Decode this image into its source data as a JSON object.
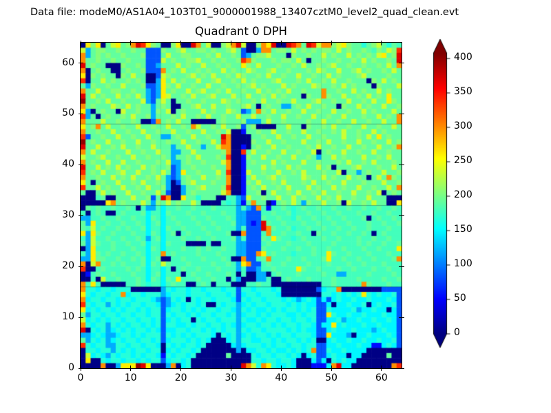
{
  "header": {
    "data_file_label": "Data file: modeM0/AS1A04_103T01_9000001988_13407cztM0_level2_quad_clean.evt"
  },
  "chart_data": {
    "type": "heatmap",
    "title": "Quadrant 0 DPH",
    "xlabel": "",
    "ylabel": "",
    "x_range": [
      0,
      64
    ],
    "y_range": [
      0,
      64
    ],
    "grid_size": 64,
    "x_ticks": [
      0,
      10,
      20,
      30,
      40,
      50,
      60
    ],
    "y_ticks": [
      0,
      10,
      20,
      30,
      40,
      50,
      60
    ],
    "colormap": "jet",
    "colorbar": {
      "ticks": [
        0,
        50,
        100,
        150,
        200,
        250,
        300,
        350,
        400
      ],
      "vmin": 0,
      "vmax": 408,
      "extend": "both",
      "over_color": "#800000",
      "under_color": "#000080"
    },
    "colors": {
      "background": "#ffffff",
      "text": "#000000",
      "frame": "#000000"
    },
    "section_boundaries": [
      16,
      32,
      48
    ],
    "value_encoding": {
      "0": 2,
      "1": 55,
      "2": 85,
      "3": 120,
      "4": 150,
      "5": 168,
      "6": 180,
      "7": 192,
      "8": 207,
      "9": 235,
      "a": 262,
      "b": 300,
      "c": 340,
      "d": 370,
      "e": 400
    },
    "rows_top_to_bottom": [
      "0a8a079a78bdca87008a00db790089bd9008bad00dcb7dc9bb89a87757897576",
      "937887787787722287789778878778972003bb7887978787887978778768798c",
      "b378787787778222797788777879778723788977708778779787797878 79a78d",
      "b77877877877722297877889778787 78cb87778788797077877877879787787d",
      "d787700087787223777978779778787 7a879777877879778789778778778797b",
      "b078770078778222b787977878779787798778977877787987797789 78778797",
      "a0878770879770029877789787977879877879778779778779787778 97777877",
      "c077978778787003a797877977897787978777897778797787977877 70879787",
      "738778779777822 3a87977877977877878978777978777987787978777087779",
      "b779778877877323a787797897787977877978787977877 7b778779787797877",
      "d79787797879732 3a977879778977797797787978777087 7b877977879787a77",
      "e77879778777932797077877877798787787977877977789778779 7787977a87",
      "b787779879787737870077897797787789707877337879778770877978779778",
      "a30787709778773879078777978779872 37b879778779778779778 7797877797",
      "c370787787977837778797787977877977977877977877977877977 78779787b",
      "b77797787787002b787977000007877783337977877778779778779 77877977b",
      "a78b797787797787797787b9778797782780000779770877879778779778 7797",
      "b77877977877977877977877977879001778779778779778778797787 7978777",
      "c2778779778779773378779778 77db0000778779778779778777977 8797a7877",
      "e787797787797787787797787797cb0000877977877797787977877977877978",
      "d779778797787797773779773779bb00107877977877787977877977 8779778b",
      "b797787779778779773377977777 8b00c797787797787790787797787 7977877",
      "9778977877977877873778797778 7c0018779778779778737797877797787977",
      "b787797797787778793378778 7779b0017877797877797787778797787977787",
      "d779787978779787782377877787 7b0017779787797877797807778977787797",
      "c78797789779778797 23a77877797c0019778779778797778779077378779778",
      "b7787797879778797323787797787b0017977897877798779787797870797b87",
      "a707877977879778730278977787 7b0018797787977787977877977787779778",
      "c7797877977879778300377897778c0017879778797779787797877 97787797b",
      "700797877977877972003787777 79b0017780797787977879778779778790787",
      "0006700777977827db00a77577700663297787797797877978797787 79777000",
      "00000ab78777973879787797000065631 7b7701787973877977809778797700a",
      "0767667667606336466766766676666 3632b616676567667667667667667667 6",
      "6067600676667466476667667666766 33222667667566766766766676676676 6",
      "3366766766766476467666766766676332227667665766766766766670676676",
      "73a6676676676467466766676676667 33212d76676667667667667666766766 7",
      "769676676766746647667666766766636222db7667566766766766766766676 6",
      "a3a7667666766476467067666766670 0b2226b667667660766766766 76067666",
      "639667667667636746667667667666 73622276a7665676667667666766766766",
      "7397667667667466476660000600666 33222676667666766667666676766766 7",
      "03a6667666766476466676676766766 33222766676676676676676667667666a",
      "63a767667667646 6b676666766676663322ba676665666766a76676667666766",
      "33a77667667674670066766676667600b2267b66676676667a6676676676667b",
      "b09b667676667476976667666676676 3ab22676676666766676667667666 7666",
      "c006766667676466460676676667666 36223667666 6a766766676676 66766766",
      "0167667666766467466606766766676060033067666766667663366667666676",
      "0060966766676476476a666766766063000336006766676666766667 66667667",
      "b6a6000006676566467660067606660006676600000000006676666 6b7666766",
      "b554554555000000354554554555455255455545000000 02455b000000002222",
      "a5455455b4554555345554555455545245545554000000005545454 5a5454452",
      "b455455455455543235450545545554254554555454345424245445445444542",
      "c5455354545545542345455450054553454554555454544224044544 50454452",
      "a454554545545455245545454554554354544545455454522544445344544042",
      "7355455455455455254554545545545345545455544545522a54454454445442",
      "9454545545545545245455054554555354454554554554522445344544544542",
      "b545535454554545255445455455454345545545455455424 4a4544454454442",
      "d054534545455454244554554545455354554555545454422454445444345442",
      "3345433455454555254545455540545345455454554555422a44430445444542",
      "7354534545545545245554545400045355445545455454500454454454454452",
      "c545533554554554054545545000004345554545545545522445444544114542",
      "0554553545455455045455450000000304455454454545b22544544440000000",
      "0945435455454554154554500000070000545545545404522454404400000700",
      "0a00545545545455245545000000000000554554554000424054544000000000",
      "0000b003aaaeda0003b0450000000000db95ba544540001114bd4400000000bc"
    ]
  }
}
